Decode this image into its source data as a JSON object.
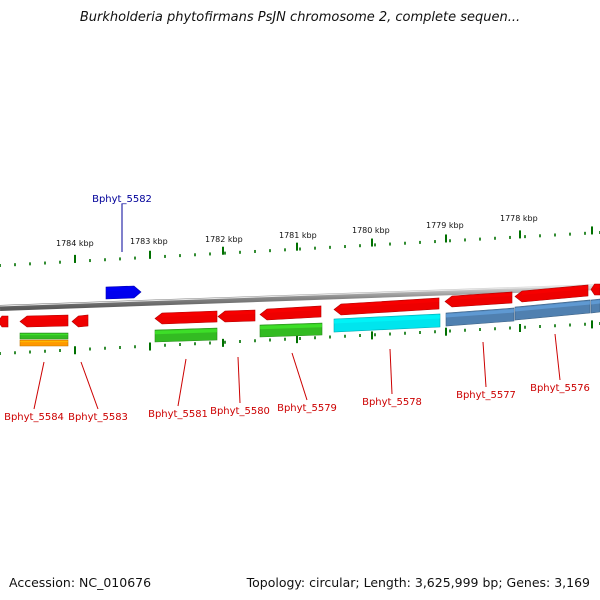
{
  "title": "Burkholderia phytofirmans PsJN chromosome 2, complete sequen...",
  "footer": {
    "accession": "Accession: NC_010676",
    "summary": "Topology: circular; Length: 3,625,999 bp; Genes: 3,169"
  },
  "colors": {
    "backbone": "#8a8a8a",
    "tick": "#007000",
    "label_red": "#cc0000",
    "label_blue": "#000099",
    "gene_red": "#ee0000",
    "gene_blue": "#0000ee",
    "gene_green": "#33bb22",
    "gene_orange": "#ff9900",
    "gene_cyan": "#00e5ee",
    "gene_steel": "#5080b0"
  },
  "scale_labels": [
    "1784 kbp",
    "1783 kbp",
    "1782 kbp",
    "1781 kbp",
    "1780 kbp",
    "1779 kbp",
    "1778 kbp"
  ],
  "gene_labels": [
    {
      "id": "Bphyt_5582",
      "color": "blue"
    },
    {
      "id": "Bphyt_5584",
      "color": "red"
    },
    {
      "id": "Bphyt_5583",
      "color": "red"
    },
    {
      "id": "Bphyt_5581",
      "color": "red"
    },
    {
      "id": "Bphyt_5580",
      "color": "red"
    },
    {
      "id": "Bphyt_5579",
      "color": "red"
    },
    {
      "id": "Bphyt_5578",
      "color": "red"
    },
    {
      "id": "Bphyt_5577",
      "color": "red"
    },
    {
      "id": "Bphyt_5576",
      "color": "red"
    }
  ]
}
